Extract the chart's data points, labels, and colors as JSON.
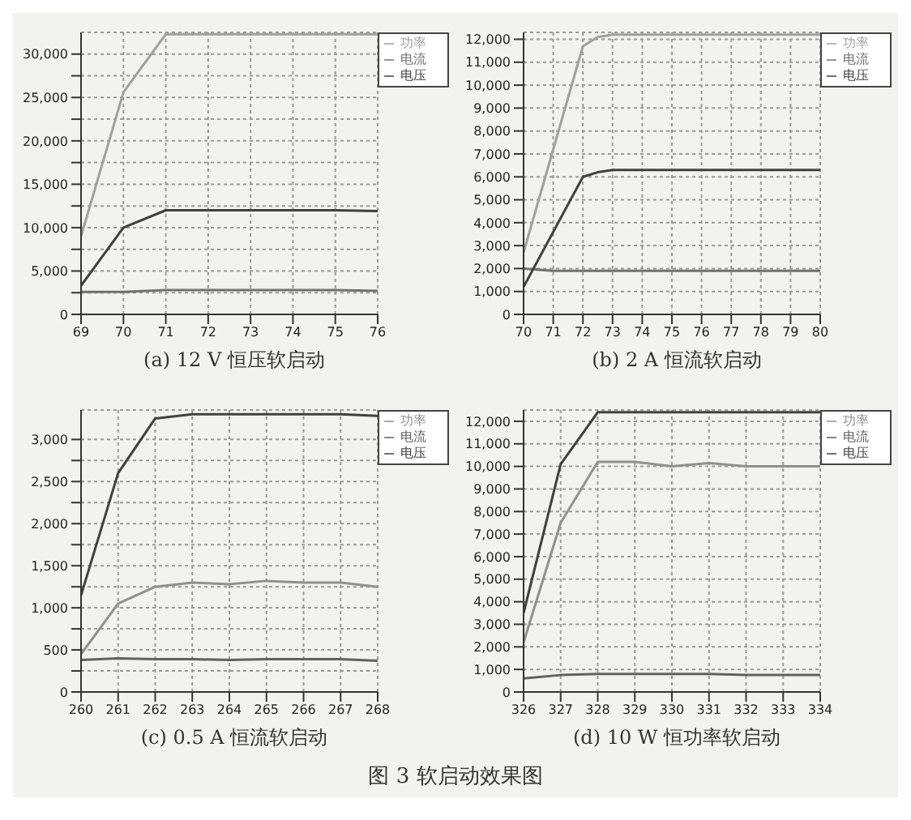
{
  "chart_data": [
    {
      "type": "line",
      "title": "(a) 12 V 恒压软启动",
      "xlim": [
        69,
        76
      ],
      "xticks": [
        69,
        70,
        71,
        72,
        73,
        74,
        75,
        76
      ],
      "ylim": [
        0,
        32500
      ],
      "yticks": [
        {
          "value": 0,
          "label": "0"
        },
        {
          "value": 2500,
          "label": null
        },
        {
          "value": 5000,
          "label": "5,000"
        },
        {
          "value": 7500,
          "label": null
        },
        {
          "value": 10000,
          "label": "10,000"
        },
        {
          "value": 12500,
          "label": null
        },
        {
          "value": 15000,
          "label": "15,000"
        },
        {
          "value": 17500,
          "label": null
        },
        {
          "value": 20000,
          "label": "20,000"
        },
        {
          "value": 22500,
          "label": null
        },
        {
          "value": 25000,
          "label": "25,000"
        },
        {
          "value": 27500,
          "label": null
        },
        {
          "value": 30000,
          "label": "30,000"
        }
      ],
      "grid": true,
      "legend": "right",
      "marker": "none",
      "line_style": "solid",
      "series": [
        {
          "name": "功率",
          "color": "#a0a0a0",
          "x": [
            69,
            70,
            71,
            72,
            73,
            74,
            75,
            76
          ],
          "values": [
            9000,
            25600,
            32300,
            32300,
            32300,
            32300,
            32300,
            32300
          ]
        },
        {
          "name": "电流",
          "color": "#707070",
          "x": [
            69,
            70,
            71,
            72,
            73,
            74,
            75,
            76
          ],
          "values": [
            2600,
            2600,
            2800,
            2800,
            2800,
            2800,
            2800,
            2700
          ]
        },
        {
          "name": "电压",
          "color": "#404040",
          "x": [
            69,
            70,
            71,
            72,
            73,
            74,
            75,
            76
          ],
          "values": [
            3300,
            10000,
            12000,
            12000,
            12000,
            12000,
            12000,
            11900
          ]
        }
      ]
    },
    {
      "type": "line",
      "title": "(b) 2 A 恒流软启动",
      "xlim": [
        70,
        80
      ],
      "xticks": [
        70,
        71,
        72,
        73,
        74,
        75,
        76,
        77,
        78,
        79,
        80
      ],
      "ylim": [
        0,
        12300
      ],
      "yticks": [
        {
          "value": 0,
          "label": "0"
        },
        {
          "value": 1000,
          "label": "1,000"
        },
        {
          "value": 2000,
          "label": "2,000"
        },
        {
          "value": 3000,
          "label": "3,000"
        },
        {
          "value": 4000,
          "label": "4,000"
        },
        {
          "value": 5000,
          "label": "5,000"
        },
        {
          "value": 6000,
          "label": "6,000"
        },
        {
          "value": 7000,
          "label": "7,000"
        },
        {
          "value": 8000,
          "label": "8,000"
        },
        {
          "value": 9000,
          "label": "9,000"
        },
        {
          "value": 10000,
          "label": "10,000"
        },
        {
          "value": 11000,
          "label": "11,000"
        },
        {
          "value": 12000,
          "label": "12,000"
        }
      ],
      "grid": true,
      "legend": "right",
      "marker": "none",
      "line_style": "solid",
      "series": [
        {
          "name": "功率",
          "color": "#a0a0a0",
          "x": [
            70,
            72,
            72.5,
            73,
            74,
            76,
            78,
            80
          ],
          "values": [
            2700,
            11700,
            12100,
            12200,
            12200,
            12200,
            12200,
            12200
          ]
        },
        {
          "name": "电流",
          "color": "#707070",
          "x": [
            70,
            71,
            74,
            77,
            80
          ],
          "values": [
            2000,
            1900,
            1900,
            1900,
            1900
          ]
        },
        {
          "name": "电压",
          "color": "#404040",
          "x": [
            70,
            72,
            72.5,
            73,
            74,
            76,
            78,
            80
          ],
          "values": [
            1200,
            6000,
            6200,
            6300,
            6300,
            6300,
            6300,
            6300
          ]
        }
      ]
    },
    {
      "type": "line",
      "title": "(c) 0.5 A 恒流软启动",
      "xlim": [
        260,
        268
      ],
      "xticks": [
        260,
        261,
        262,
        263,
        264,
        265,
        266,
        267,
        268
      ],
      "ylim": [
        0,
        3350
      ],
      "yticks": [
        {
          "value": 0,
          "label": "0"
        },
        {
          "value": 250,
          "label": null
        },
        {
          "value": 500,
          "label": "500"
        },
        {
          "value": 750,
          "label": null
        },
        {
          "value": 1000,
          "label": "1,000"
        },
        {
          "value": 1250,
          "label": null
        },
        {
          "value": 1500,
          "label": "1,500"
        },
        {
          "value": 1750,
          "label": null
        },
        {
          "value": 2000,
          "label": "2,000"
        },
        {
          "value": 2250,
          "label": null
        },
        {
          "value": 2500,
          "label": "2,500"
        },
        {
          "value": 2750,
          "label": null
        },
        {
          "value": 3000,
          "label": "3,000"
        }
      ],
      "grid": true,
      "legend": "right",
      "marker": "none",
      "line_style": "solid",
      "series": [
        {
          "name": "功率",
          "color": "#909090",
          "x": [
            260,
            261,
            262,
            263,
            264,
            265,
            266,
            267,
            268
          ],
          "values": [
            450,
            1050,
            1250,
            1300,
            1280,
            1320,
            1300,
            1300,
            1250
          ]
        },
        {
          "name": "电流",
          "color": "#606060",
          "x": [
            260,
            261,
            262,
            263,
            264,
            265,
            266,
            267,
            268
          ],
          "values": [
            380,
            400,
            390,
            390,
            380,
            390,
            390,
            390,
            370
          ]
        },
        {
          "name": "电压",
          "color": "#404040",
          "x": [
            260,
            261,
            262,
            263,
            264,
            265,
            266,
            267,
            268
          ],
          "values": [
            1150,
            2600,
            3250,
            3300,
            3300,
            3300,
            3300,
            3300,
            3280
          ]
        }
      ]
    },
    {
      "type": "line",
      "title": "(d) 10 W 恒功率软启动",
      "annotations": [
        "图 3 软启动效果图"
      ],
      "xlim": [
        326,
        334
      ],
      "xticks": [
        326,
        327,
        328,
        329,
        330,
        331,
        332,
        333,
        334
      ],
      "ylim": [
        0,
        12500
      ],
      "yticks": [
        {
          "value": 0,
          "label": "0"
        },
        {
          "value": 1000,
          "label": "1,000"
        },
        {
          "value": 2000,
          "label": "2,000"
        },
        {
          "value": 3000,
          "label": "3,000"
        },
        {
          "value": 4000,
          "label": "4,000"
        },
        {
          "value": 5000,
          "label": "5,000"
        },
        {
          "value": 6000,
          "label": "6,000"
        },
        {
          "value": 7000,
          "label": "7,000"
        },
        {
          "value": 8000,
          "label": "8,000"
        },
        {
          "value": 9000,
          "label": "9,000"
        },
        {
          "value": 10000,
          "label": "10,000"
        },
        {
          "value": 11000,
          "label": "11,000"
        },
        {
          "value": 12000,
          "label": "12,000"
        }
      ],
      "grid": true,
      "legend": "right",
      "marker": "none",
      "line_style": "solid",
      "series": [
        {
          "name": "功率",
          "color": "#909090",
          "x": [
            326,
            327,
            328,
            329,
            330,
            331,
            332,
            333,
            334
          ],
          "values": [
            2200,
            7500,
            10200,
            10200,
            10000,
            10150,
            10000,
            10000,
            10000
          ]
        },
        {
          "name": "电流",
          "color": "#606060",
          "x": [
            326,
            327,
            328,
            329,
            330,
            331,
            332,
            333,
            334
          ],
          "values": [
            600,
            750,
            800,
            800,
            800,
            800,
            750,
            750,
            750
          ]
        },
        {
          "name": "电压",
          "color": "#404040",
          "x": [
            326,
            327,
            328,
            329,
            330,
            331,
            332,
            333,
            334
          ],
          "values": [
            3500,
            10100,
            12400,
            12400,
            12400,
            12400,
            12400,
            12400,
            12400
          ]
        }
      ]
    }
  ]
}
